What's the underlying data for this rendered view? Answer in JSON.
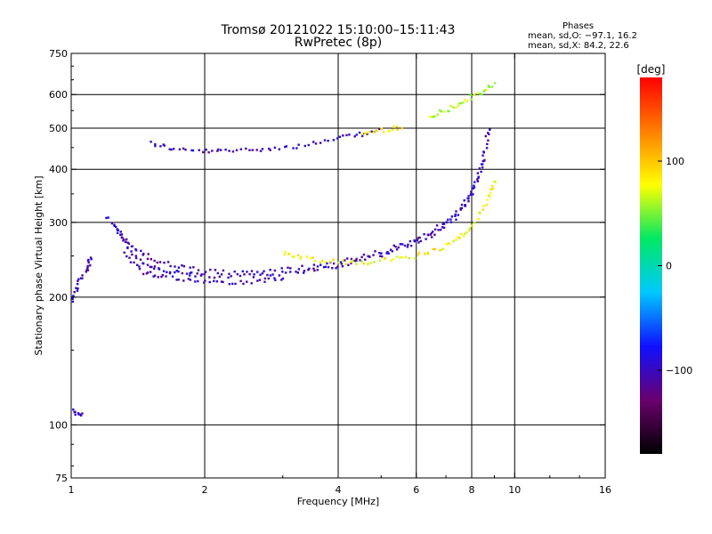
{
  "header": {
    "title": "Tromsø 20121022 15:10:00–15:11:43",
    "subtitle": "RwPretec (8p)"
  },
  "phases": {
    "heading": "Phases",
    "o_line": "mean, sd,O: −97.1, 16.2",
    "x_line": "mean, sd,X:  84.2, 22.6"
  },
  "colorbar": {
    "label": "[deg]",
    "ticks": [
      {
        "label": "100",
        "value": 100
      },
      {
        "label": "0",
        "value": 0
      },
      {
        "label": "−100",
        "value": -100
      }
    ],
    "range": [
      -180,
      180
    ],
    "colors": [
      "#000000",
      "#6a006e",
      "#1010ff",
      "#00c8ff",
      "#00e864",
      "#ffff00",
      "#ff7f00",
      "#ff0000"
    ]
  },
  "chart_data": {
    "type": "scatter",
    "title": "Tromsø 20121022 15:10:00–15:11:43",
    "subtitle": "RwPretec (8p)",
    "xlabel": "Frequency [MHz]",
    "ylabel": "Stationary phase Virtual Height [km]",
    "x_scale": "log",
    "y_scale": "log",
    "xlim": [
      1,
      16
    ],
    "ylim": [
      75,
      750
    ],
    "x_ticks": [
      {
        "v": 1,
        "label": "1"
      },
      {
        "v": 2,
        "label": "2"
      },
      {
        "v": 4,
        "label": "4"
      },
      {
        "v": 6,
        "label": "6"
      },
      {
        "v": 8,
        "label": "8"
      },
      {
        "v": 10,
        "label": "10"
      },
      {
        "v": 16,
        "label": "16"
      }
    ],
    "y_ticks": [
      {
        "v": 75,
        "label": "75"
      },
      {
        "v": 100,
        "label": "100"
      },
      {
        "v": 200,
        "label": "200"
      },
      {
        "v": 300,
        "label": "300"
      },
      {
        "v": 400,
        "label": "400"
      },
      {
        "v": 500,
        "label": "500"
      },
      {
        "v": 600,
        "label": "600"
      },
      {
        "v": 750,
        "label": "750"
      }
    ],
    "grid_x": [
      2,
      4,
      6,
      8,
      10
    ],
    "grid_y": [
      100,
      200,
      300,
      400,
      500,
      600
    ],
    "grid": true,
    "traces": [
      {
        "name": "",
        "phase": -100,
        "points": [
          [
            1.5,
            465
          ],
          [
            1.7,
            448
          ],
          [
            2.0,
            443
          ],
          [
            2.3,
            445
          ],
          [
            2.7,
            450
          ],
          [
            3.2,
            455
          ],
          [
            3.8,
            470
          ],
          [
            4.4,
            485
          ],
          [
            4.9,
            495
          ]
        ]
      },
      {
        "name": "",
        "phase": 80,
        "points": [
          [
            4.5,
            488
          ],
          [
            5.0,
            497
          ],
          [
            5.5,
            503
          ]
        ]
      },
      {
        "name": "",
        "phase": -100,
        "points": [
          [
            1.25,
            295
          ],
          [
            1.33,
            265
          ],
          [
            1.45,
            240
          ],
          [
            1.6,
            232
          ],
          [
            1.8,
            228
          ],
          [
            2.0,
            226
          ],
          [
            2.4,
            225
          ],
          [
            2.8,
            227
          ],
          [
            3.3,
            232
          ],
          [
            3.8,
            236
          ],
          [
            4.3,
            243
          ],
          [
            5.0,
            253
          ],
          [
            5.8,
            268
          ],
          [
            6.5,
            282
          ],
          [
            7.2,
            305
          ],
          [
            7.8,
            340
          ],
          [
            8.2,
            380
          ],
          [
            8.5,
            440
          ],
          [
            8.7,
            500
          ]
        ]
      },
      {
        "name": "",
        "phase": -100,
        "points": [
          [
            1.2,
            310
          ],
          [
            1.3,
            280
          ],
          [
            1.4,
            258
          ],
          [
            1.55,
            245
          ],
          [
            1.8,
            235
          ],
          [
            2.2,
            230
          ],
          [
            2.8,
            232
          ],
          [
            3.5,
            238
          ],
          [
            4.2,
            246
          ],
          [
            5.0,
            258
          ],
          [
            5.8,
            272
          ],
          [
            6.6,
            290
          ],
          [
            7.4,
            318
          ],
          [
            8.0,
            360
          ],
          [
            8.5,
            420
          ]
        ]
      },
      {
        "name": "",
        "phase": -100,
        "points": [
          [
            1.3,
            255
          ],
          [
            1.45,
            230
          ],
          [
            1.6,
            225
          ],
          [
            1.9,
            220
          ],
          [
            2.2,
            218
          ],
          [
            2.6,
            219
          ],
          [
            3.0,
            222
          ]
        ]
      },
      {
        "name": "",
        "phase": 80,
        "points": [
          [
            3.0,
            255
          ],
          [
            3.3,
            248
          ],
          [
            3.8,
            244
          ],
          [
            4.5,
            242
          ],
          [
            5.2,
            246
          ],
          [
            6.0,
            252
          ],
          [
            6.8,
            262
          ],
          [
            7.5,
            278
          ],
          [
            8.1,
            300
          ],
          [
            8.6,
            340
          ],
          [
            9.0,
            380
          ]
        ]
      },
      {
        "name": "",
        "phase": 60,
        "points": [
          [
            6.4,
            535
          ],
          [
            7.0,
            555
          ],
          [
            7.6,
            580
          ],
          [
            8.4,
            610
          ],
          [
            8.9,
            640
          ]
        ]
      },
      {
        "name": "",
        "phase": -100,
        "points": [
          [
            1.0,
            195
          ],
          [
            1.03,
            215
          ],
          [
            1.08,
            235
          ],
          [
            1.1,
            248
          ]
        ]
      },
      {
        "name": "",
        "phase": -100,
        "points": [
          [
            1.0,
            108
          ],
          [
            1.05,
            106
          ]
        ]
      }
    ]
  }
}
